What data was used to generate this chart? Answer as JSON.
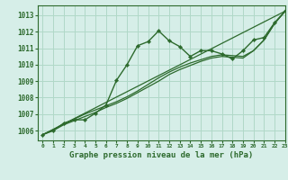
{
  "title": "Graphe pression niveau de la mer (hPa)",
  "bg_color": "#d6eee8",
  "grid_color": "#b0d8c8",
  "line_color": "#2d6a2d",
  "xlim": [
    -0.5,
    23
  ],
  "ylim": [
    1005.4,
    1013.6
  ],
  "xticks": [
    0,
    1,
    2,
    3,
    4,
    5,
    6,
    7,
    8,
    9,
    10,
    11,
    12,
    13,
    14,
    15,
    16,
    17,
    18,
    19,
    20,
    21,
    22,
    23
  ],
  "yticks": [
    1006,
    1007,
    1008,
    1009,
    1010,
    1011,
    1012,
    1013
  ],
  "series1_marked": {
    "x": [
      0,
      1,
      2,
      3,
      4,
      5,
      6,
      7,
      8,
      9,
      10,
      11,
      12,
      13,
      14,
      15,
      16,
      17,
      18,
      19,
      20,
      21,
      22,
      23
    ],
    "y": [
      1005.75,
      1006.0,
      1006.45,
      1006.65,
      1006.65,
      1007.05,
      1007.55,
      1009.05,
      1010.0,
      1011.15,
      1011.4,
      1012.05,
      1011.45,
      1011.1,
      1010.5,
      1010.85,
      1010.85,
      1010.65,
      1010.35,
      1010.85,
      1011.5,
      1011.65,
      1012.55,
      1013.25
    ]
  },
  "series2_straight": {
    "x": [
      0,
      23
    ],
    "y": [
      1005.75,
      1013.25
    ]
  },
  "series3_smooth": {
    "x": [
      0,
      1,
      2,
      3,
      4,
      5,
      6,
      7,
      8,
      9,
      10,
      11,
      12,
      13,
      14,
      15,
      16,
      17,
      18,
      19,
      20,
      21,
      22,
      23
    ],
    "y": [
      1005.75,
      1006.05,
      1006.4,
      1006.7,
      1007.0,
      1007.25,
      1007.5,
      1007.75,
      1008.05,
      1008.4,
      1008.8,
      1009.2,
      1009.55,
      1009.85,
      1010.1,
      1010.3,
      1010.5,
      1010.6,
      1010.55,
      1010.5,
      1010.85,
      1011.5,
      1012.5,
      1013.25
    ]
  },
  "series4_smooth": {
    "x": [
      0,
      1,
      2,
      3,
      4,
      5,
      6,
      7,
      8,
      9,
      10,
      11,
      12,
      13,
      14,
      15,
      16,
      17,
      18,
      19,
      20,
      21,
      22,
      23
    ],
    "y": [
      1005.75,
      1006.0,
      1006.35,
      1006.6,
      1006.85,
      1007.1,
      1007.4,
      1007.65,
      1007.95,
      1008.3,
      1008.65,
      1009.0,
      1009.4,
      1009.7,
      1009.95,
      1010.2,
      1010.4,
      1010.5,
      1010.45,
      1010.4,
      1010.85,
      1011.5,
      1012.5,
      1013.25
    ]
  }
}
